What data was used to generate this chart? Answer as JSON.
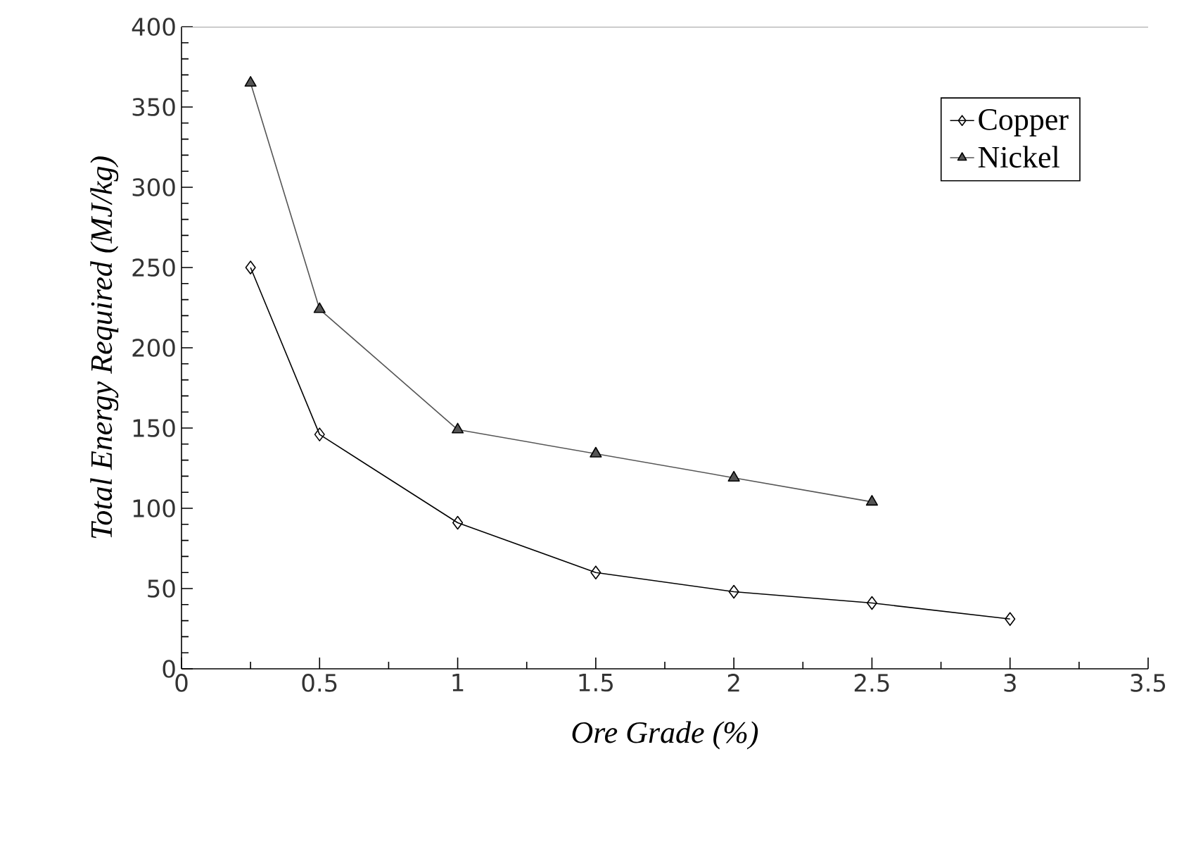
{
  "chart_data": {
    "type": "line",
    "xlabel": "Ore Grade (%)",
    "ylabel": "Total Energy Required (MJ/kg)",
    "xlim": [
      0,
      3.5
    ],
    "ylim": [
      0,
      400
    ],
    "xticks": [
      0,
      0.5,
      1,
      1.5,
      2,
      2.5,
      3,
      3.5
    ],
    "yticks": [
      0,
      50,
      100,
      150,
      200,
      250,
      300,
      350,
      400
    ],
    "grid": false,
    "legend": "top right",
    "series": [
      {
        "name": "Copper",
        "color": "#000000",
        "marker": "diamond",
        "x": [
          0.25,
          0.5,
          1,
          1.5,
          2,
          2.5,
          3
        ],
        "values": [
          250,
          146,
          91,
          60,
          48,
          41,
          31
        ]
      },
      {
        "name": "Nickel",
        "color": "#555555",
        "marker": "triangle",
        "x": [
          0.25,
          0.5,
          1,
          1.5,
          2,
          2.5
        ],
        "values": [
          365,
          224,
          149,
          134,
          119,
          104
        ]
      }
    ]
  }
}
